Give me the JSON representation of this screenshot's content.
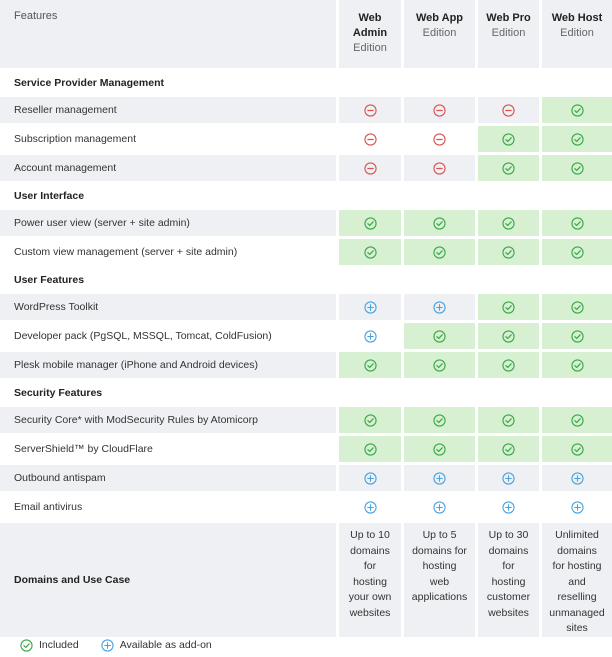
{
  "header": {
    "features_label": "Features",
    "editions": [
      {
        "name_line1": "Web",
        "name_line2": "Admin",
        "sub": "Edition"
      },
      {
        "name_line1": "Web App",
        "name_line2": "",
        "sub": "Edition"
      },
      {
        "name_line1": "Web Pro",
        "name_line2": "",
        "sub": "Edition"
      },
      {
        "name_line1": "Web Host",
        "name_line2": "",
        "sub": "Edition"
      }
    ]
  },
  "colors": {
    "included_bg": "#d6f0d1",
    "included_icon": "#3aa84a",
    "addon_icon": "#4aa3df",
    "not_included_icon": "#d9534f",
    "row_gray": "#eef0f3"
  },
  "sections": [
    {
      "title": "Service Provider Management",
      "rows": [
        {
          "label": "Reseller management",
          "values": [
            "no",
            "no",
            "no",
            "yes"
          ]
        },
        {
          "label": "Subscription management",
          "values": [
            "no",
            "no",
            "yes",
            "yes"
          ]
        },
        {
          "label": "Account management",
          "values": [
            "no",
            "no",
            "yes",
            "yes"
          ]
        }
      ]
    },
    {
      "title": "User Interface",
      "rows": [
        {
          "label": "Power user view (server + site admin)",
          "values": [
            "yes",
            "yes",
            "yes",
            "yes"
          ]
        },
        {
          "label": "Custom view management (server + site admin)",
          "values": [
            "yes",
            "yes",
            "yes",
            "yes"
          ]
        }
      ]
    },
    {
      "title": "User Features",
      "rows": [
        {
          "label": "WordPress Toolkit",
          "values": [
            "addon",
            "addon",
            "yes",
            "yes"
          ]
        },
        {
          "label": "Developer pack (PgSQL, MSSQL, Tomcat, ColdFusion)",
          "values": [
            "addon",
            "yes",
            "yes",
            "yes"
          ]
        },
        {
          "label": "Plesk mobile manager (iPhone and Android devices)",
          "values": [
            "yes",
            "yes",
            "yes",
            "yes"
          ]
        }
      ]
    },
    {
      "title": "Security Features",
      "rows": [
        {
          "label": "Security Core* with ModSecurity Rules by Atomicorp",
          "values": [
            "yes",
            "yes",
            "yes",
            "yes"
          ]
        },
        {
          "label": "ServerShield™ by CloudFlare",
          "values": [
            "yes",
            "yes",
            "yes",
            "yes"
          ]
        },
        {
          "label": "Outbound antispam",
          "values": [
            "addon",
            "addon",
            "addon",
            "addon"
          ]
        },
        {
          "label": "Email antivirus",
          "values": [
            "addon",
            "addon",
            "addon",
            "addon"
          ]
        }
      ]
    }
  ],
  "domains": {
    "label": "Domains and Use Case",
    "values": [
      [
        "Up to 10",
        "domains",
        "for",
        "hosting",
        "your own",
        "websites"
      ],
      [
        "Up to 5",
        "domains for",
        "hosting",
        "web",
        "applications"
      ],
      [
        "Up to 30",
        "domains",
        "for",
        "hosting",
        "customer",
        "websites"
      ],
      [
        "Unlimited",
        "domains",
        "for hosting",
        "and",
        "reselling",
        "unmanaged",
        "sites"
      ]
    ]
  },
  "legend": {
    "included": "Included",
    "addon": "Available as add-on"
  }
}
